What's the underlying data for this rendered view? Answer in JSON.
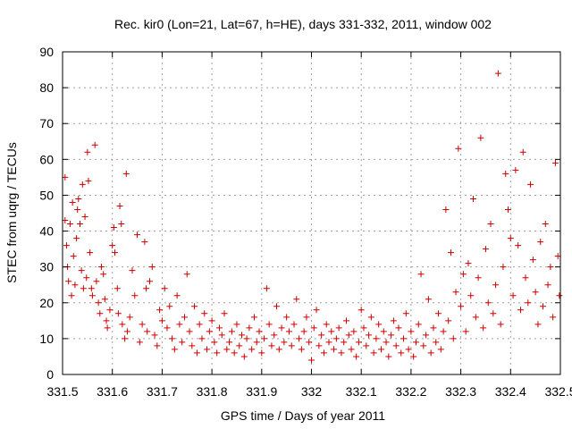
{
  "chart_data": {
    "type": "scatter",
    "title": "Rec. kir0 (Lon=21, Lat=67, h=HE), days 331-332, 2011, window 002",
    "xlabel": "GPS time / Days of year 2011",
    "ylabel": "STEC from uqrg / TECUs",
    "xlim": [
      331.5,
      332.5
    ],
    "ylim": [
      0,
      90
    ],
    "x_ticks": [
      "331.5",
      "331.6",
      "331.7",
      "331.8",
      "331.9",
      "332",
      "332.1",
      "332.2",
      "332.3",
      "332.4",
      "332.5"
    ],
    "y_ticks": [
      "0",
      "10",
      "20",
      "30",
      "40",
      "50",
      "60",
      "70",
      "80",
      "90"
    ],
    "grid": true,
    "legend": "none",
    "marker": "plus",
    "color": "#cc0000",
    "series": [
      {
        "points": [
          [
            331.505,
            55
          ],
          [
            331.505,
            43
          ],
          [
            331.508,
            36
          ],
          [
            331.51,
            30
          ],
          [
            331.512,
            26
          ],
          [
            331.515,
            42
          ],
          [
            331.518,
            22
          ],
          [
            331.52,
            48
          ],
          [
            331.522,
            33
          ],
          [
            331.525,
            25
          ],
          [
            331.528,
            38
          ],
          [
            331.53,
            46
          ],
          [
            331.532,
            49
          ],
          [
            331.535,
            42
          ],
          [
            331.538,
            29
          ],
          [
            331.54,
            53
          ],
          [
            331.542,
            24
          ],
          [
            331.545,
            44
          ],
          [
            331.548,
            27
          ],
          [
            331.55,
            62
          ],
          [
            331.552,
            54
          ],
          [
            331.555,
            34
          ],
          [
            331.558,
            24
          ],
          [
            331.56,
            22
          ],
          [
            331.565,
            64
          ],
          [
            331.568,
            26
          ],
          [
            331.572,
            20
          ],
          [
            331.575,
            17
          ],
          [
            331.578,
            30
          ],
          [
            331.582,
            28
          ],
          [
            331.585,
            21
          ],
          [
            331.588,
            15
          ],
          [
            331.59,
            13
          ],
          [
            331.595,
            18
          ],
          [
            331.6,
            36
          ],
          [
            331.603,
            41
          ],
          [
            331.605,
            34
          ],
          [
            331.61,
            24
          ],
          [
            331.612,
            17
          ],
          [
            331.615,
            47
          ],
          [
            331.618,
            42
          ],
          [
            331.62,
            14
          ],
          [
            331.625,
            10
          ],
          [
            331.628,
            56
          ],
          [
            331.63,
            12
          ],
          [
            331.635,
            16
          ],
          [
            331.64,
            29
          ],
          [
            331.645,
            22
          ],
          [
            331.65,
            39
          ],
          [
            331.655,
            9
          ],
          [
            331.66,
            14
          ],
          [
            331.665,
            37
          ],
          [
            331.668,
            24
          ],
          [
            331.67,
            12
          ],
          [
            331.675,
            26
          ],
          [
            331.68,
            30
          ],
          [
            331.685,
            11
          ],
          [
            331.69,
            8
          ],
          [
            331.695,
            18
          ],
          [
            331.7,
            15
          ],
          [
            331.705,
            24
          ],
          [
            331.71,
            13
          ],
          [
            331.715,
            19
          ],
          [
            331.72,
            10
          ],
          [
            331.725,
            7
          ],
          [
            331.73,
            22
          ],
          [
            331.735,
            14
          ],
          [
            331.74,
            9
          ],
          [
            331.745,
            16
          ],
          [
            331.75,
            28
          ],
          [
            331.755,
            12
          ],
          [
            331.76,
            8
          ],
          [
            331.765,
            19
          ],
          [
            331.77,
            6
          ],
          [
            331.775,
            14
          ],
          [
            331.78,
            10
          ],
          [
            331.785,
            17
          ],
          [
            331.79,
            7
          ],
          [
            331.795,
            12
          ],
          [
            331.8,
            15
          ],
          [
            331.805,
            9
          ],
          [
            331.81,
            6
          ],
          [
            331.815,
            13
          ],
          [
            331.82,
            11
          ],
          [
            331.825,
            17
          ],
          [
            331.83,
            7
          ],
          [
            331.835,
            9
          ],
          [
            331.84,
            12
          ],
          [
            331.845,
            6
          ],
          [
            331.85,
            14
          ],
          [
            331.855,
            8
          ],
          [
            331.86,
            11
          ],
          [
            331.865,
            5
          ],
          [
            331.87,
            10
          ],
          [
            331.875,
            13
          ],
          [
            331.88,
            7
          ],
          [
            331.885,
            16
          ],
          [
            331.89,
            9
          ],
          [
            331.895,
            12
          ],
          [
            331.9,
            6
          ],
          [
            331.905,
            10
          ],
          [
            331.91,
            24
          ],
          [
            331.915,
            14
          ],
          [
            331.92,
            8
          ],
          [
            331.925,
            11
          ],
          [
            331.93,
            19
          ],
          [
            331.935,
            7
          ],
          [
            331.94,
            13
          ],
          [
            331.945,
            9
          ],
          [
            331.95,
            16
          ],
          [
            331.955,
            12
          ],
          [
            331.96,
            8
          ],
          [
            331.965,
            14
          ],
          [
            331.97,
            21
          ],
          [
            331.975,
            10
          ],
          [
            331.98,
            7
          ],
          [
            331.985,
            12
          ],
          [
            331.99,
            16
          ],
          [
            331.995,
            9
          ],
          [
            332.0,
            4
          ],
          [
            332.005,
            13
          ],
          [
            332.01,
            18
          ],
          [
            332.015,
            8
          ],
          [
            332.02,
            11
          ],
          [
            332.025,
            6
          ],
          [
            332.03,
            14
          ],
          [
            332.035,
            9
          ],
          [
            332.04,
            12
          ],
          [
            332.045,
            7
          ],
          [
            332.05,
            10
          ],
          [
            332.055,
            13
          ],
          [
            332.06,
            6
          ],
          [
            332.065,
            9
          ],
          [
            332.07,
            15
          ],
          [
            332.075,
            11
          ],
          [
            332.08,
            7
          ],
          [
            332.085,
            12
          ],
          [
            332.09,
            5
          ],
          [
            332.095,
            9
          ],
          [
            332.1,
            18
          ],
          [
            332.105,
            13
          ],
          [
            332.11,
            8
          ],
          [
            332.115,
            11
          ],
          [
            332.12,
            16
          ],
          [
            332.125,
            6
          ],
          [
            332.13,
            10
          ],
          [
            332.135,
            14
          ],
          [
            332.14,
            7
          ],
          [
            332.145,
            12
          ],
          [
            332.15,
            9
          ],
          [
            332.155,
            5
          ],
          [
            332.16,
            11
          ],
          [
            332.165,
            15
          ],
          [
            332.17,
            8
          ],
          [
            332.175,
            13
          ],
          [
            332.18,
            6
          ],
          [
            332.185,
            10
          ],
          [
            332.19,
            17
          ],
          [
            332.195,
            7
          ],
          [
            332.2,
            12
          ],
          [
            332.205,
            5
          ],
          [
            332.21,
            9
          ],
          [
            332.215,
            14
          ],
          [
            332.22,
            28
          ],
          [
            332.225,
            8
          ],
          [
            332.23,
            11
          ],
          [
            332.235,
            21
          ],
          [
            332.24,
            6
          ],
          [
            332.245,
            13
          ],
          [
            332.25,
            9
          ],
          [
            332.255,
            17
          ],
          [
            332.26,
            7
          ],
          [
            332.265,
            12
          ],
          [
            332.27,
            46
          ],
          [
            332.275,
            15
          ],
          [
            332.28,
            34
          ],
          [
            332.285,
            10
          ],
          [
            332.29,
            23
          ],
          [
            332.295,
            63
          ],
          [
            332.3,
            19
          ],
          [
            332.305,
            28
          ],
          [
            332.31,
            12
          ],
          [
            332.315,
            31
          ],
          [
            332.32,
            22
          ],
          [
            332.325,
            49
          ],
          [
            332.33,
            16
          ],
          [
            332.335,
            27
          ],
          [
            332.34,
            66
          ],
          [
            332.345,
            13
          ],
          [
            332.35,
            35
          ],
          [
            332.355,
            20
          ],
          [
            332.36,
            42
          ],
          [
            332.365,
            17
          ],
          [
            332.37,
            25
          ],
          [
            332.375,
            84
          ],
          [
            332.38,
            14
          ],
          [
            332.385,
            30
          ],
          [
            332.39,
            56
          ],
          [
            332.395,
            46
          ],
          [
            332.4,
            38
          ],
          [
            332.405,
            22
          ],
          [
            332.41,
            57
          ],
          [
            332.415,
            36
          ],
          [
            332.42,
            18
          ],
          [
            332.425,
            62
          ],
          [
            332.43,
            27
          ],
          [
            332.435,
            20
          ],
          [
            332.44,
            53
          ],
          [
            332.445,
            32
          ],
          [
            332.45,
            23
          ],
          [
            332.455,
            14
          ],
          [
            332.46,
            37
          ],
          [
            332.465,
            19
          ],
          [
            332.47,
            42
          ],
          [
            332.475,
            25
          ],
          [
            332.48,
            30
          ],
          [
            332.485,
            16
          ],
          [
            332.49,
            59
          ],
          [
            332.495,
            33
          ],
          [
            332.498,
            22
          ]
        ]
      }
    ]
  }
}
